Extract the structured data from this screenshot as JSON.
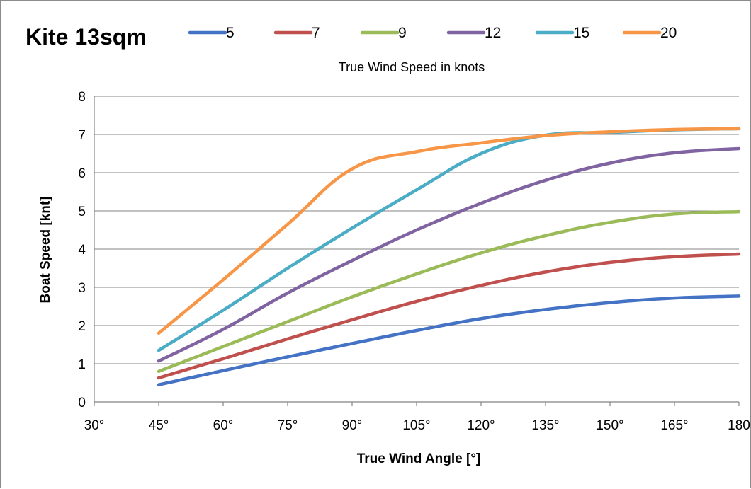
{
  "chart_data": {
    "type": "line",
    "title": "Kite 13sqm",
    "legend_title": "True Wind Speed in knots",
    "legend_position": "top",
    "xlabel": "True Wind Angle [°]",
    "ylabel": "Boat Speed [knt]",
    "xlim": [
      30,
      180
    ],
    "ylim": [
      0,
      8
    ],
    "grid": true,
    "x_ticks": [
      "30°",
      "45°",
      "60°",
      "75°",
      "90°",
      "105°",
      "120°",
      "135°",
      "150°",
      "165°",
      "180"
    ],
    "y_ticks": [
      "0",
      "1",
      "2",
      "3",
      "4",
      "5",
      "6",
      "7",
      "8"
    ],
    "x": [
      45,
      60,
      75,
      90,
      105,
      120,
      135,
      150,
      165,
      180
    ],
    "series": [
      {
        "name": "5",
        "color": "#4472c4",
        "values": [
          0.45,
          0.82,
          1.18,
          1.53,
          1.87,
          2.18,
          2.42,
          2.6,
          2.72,
          2.77
        ]
      },
      {
        "name": "7",
        "color": "#c0504d",
        "values": [
          0.63,
          1.13,
          1.65,
          2.15,
          2.63,
          3.05,
          3.4,
          3.65,
          3.8,
          3.87
        ]
      },
      {
        "name": "9",
        "color": "#9bbb59",
        "values": [
          0.8,
          1.45,
          2.1,
          2.75,
          3.35,
          3.9,
          4.35,
          4.7,
          4.92,
          4.98
        ]
      },
      {
        "name": "12",
        "color": "#8064a2",
        "values": [
          1.07,
          1.9,
          2.85,
          3.7,
          4.5,
          5.2,
          5.8,
          6.25,
          6.52,
          6.63
        ]
      },
      {
        "name": "15",
        "color": "#4bacc6",
        "values": [
          1.35,
          2.4,
          3.5,
          4.55,
          5.55,
          6.5,
          6.98,
          7.05,
          7.12,
          7.15
        ]
      },
      {
        "name": "20",
        "color": "#f79646",
        "values": [
          1.8,
          3.2,
          4.65,
          6.1,
          6.55,
          6.78,
          6.97,
          7.07,
          7.13,
          7.15
        ]
      }
    ]
  }
}
